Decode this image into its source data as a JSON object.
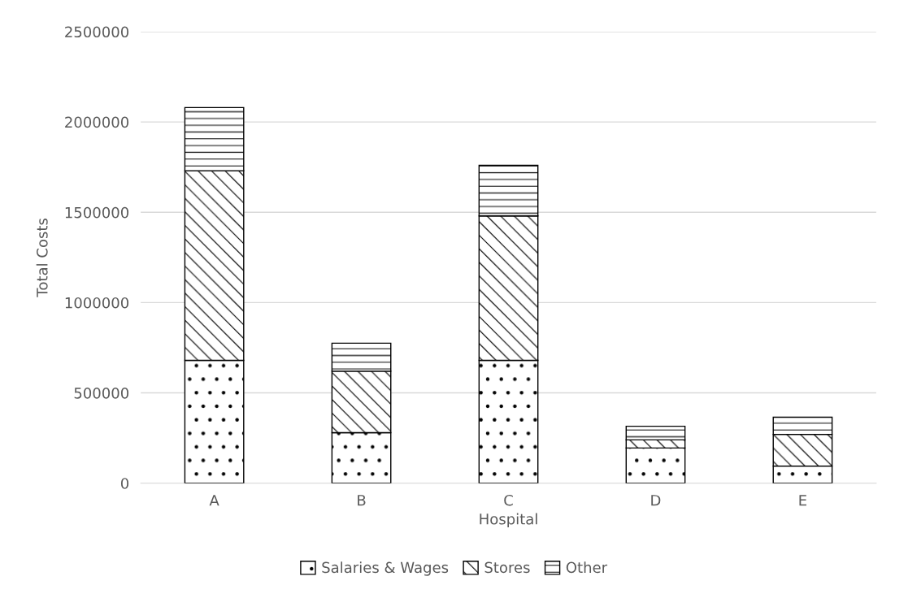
{
  "chart_data": {
    "type": "bar",
    "stacked": true,
    "xlabel": "Hospital",
    "ylabel": "Total Costs",
    "categories": [
      "A",
      "B",
      "C",
      "D",
      "E"
    ],
    "series": [
      {
        "name": "Salaries & Wages",
        "color": "#000000",
        "values": [
          680000,
          280000,
          680000,
          195000,
          95000
        ]
      },
      {
        "name": "Stores",
        "color": "#000000",
        "values": [
          1050000,
          340000,
          800000,
          45000,
          175000
        ]
      },
      {
        "name": "Other",
        "color": "#000000",
        "values": [
          350000,
          155000,
          280000,
          75000,
          95000
        ]
      }
    ],
    "ylim": [
      0,
      2500000
    ],
    "yticks": [
      0,
      500000,
      1000000,
      1500000,
      2000000,
      2500000
    ],
    "grid": "y",
    "legend": "bottom"
  }
}
